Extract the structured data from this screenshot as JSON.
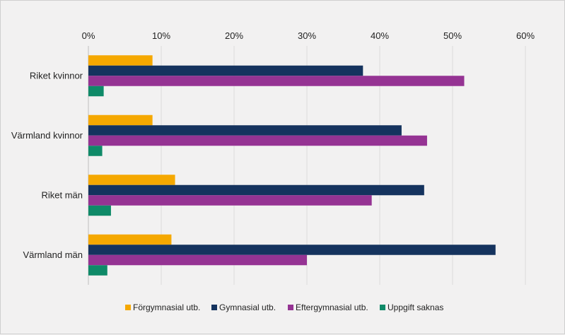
{
  "chart_data": {
    "type": "bar",
    "orientation": "horizontal",
    "title": "",
    "xlabel": "",
    "ylabel": "",
    "xlim": [
      0,
      0.6
    ],
    "xticks": [
      0,
      0.1,
      0.2,
      0.3,
      0.4,
      0.5,
      0.6
    ],
    "xtick_labels": [
      "0%",
      "10%",
      "20%",
      "30%",
      "40%",
      "50%",
      "60%"
    ],
    "axis_position": "top",
    "grid": true,
    "legend_position": "bottom",
    "categories": [
      "Riket kvinnor",
      "Värmland kvinnor",
      "Riket män",
      "Värmland män"
    ],
    "series": [
      {
        "name": "Förgymnasial utb.",
        "color": "#f5a800",
        "values": [
          0.088,
          0.088,
          0.119,
          0.114
        ]
      },
      {
        "name": "Gymnasial utb.",
        "color": "#15335e",
        "values": [
          0.377,
          0.43,
          0.461,
          0.559
        ]
      },
      {
        "name": "Eftergymnasial utb.",
        "color": "#953393",
        "values": [
          0.516,
          0.465,
          0.389,
          0.3
        ]
      },
      {
        "name": "Uppgift saknas",
        "color": "#0f8a68",
        "values": [
          0.021,
          0.019,
          0.031,
          0.026
        ]
      }
    ]
  }
}
